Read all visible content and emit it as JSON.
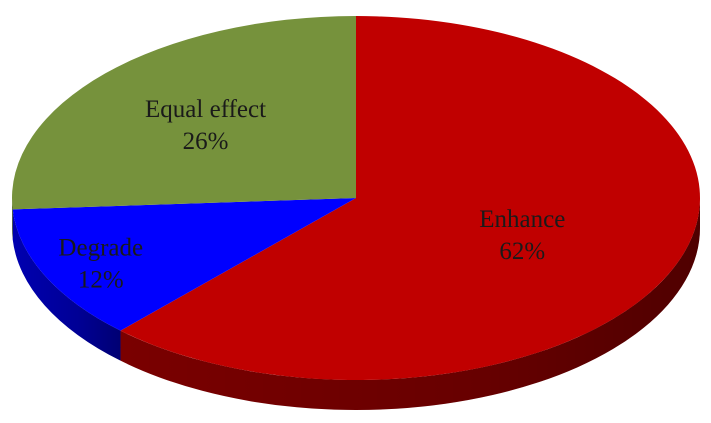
{
  "chart_data": {
    "type": "pie",
    "title": "",
    "style": "3d",
    "slices": [
      {
        "label": "Enhance",
        "value": 62,
        "value_label": "62%",
        "color": "#c00000",
        "side_color": "#7a0000"
      },
      {
        "label": "Degrade",
        "value": 12,
        "value_label": "12%",
        "color": "#0000ff",
        "side_color": "#0000b0"
      },
      {
        "label": "Equal effect",
        "value": 26,
        "value_label": "26%",
        "color": "#76923c",
        "side_color": "#4f6328"
      }
    ]
  }
}
